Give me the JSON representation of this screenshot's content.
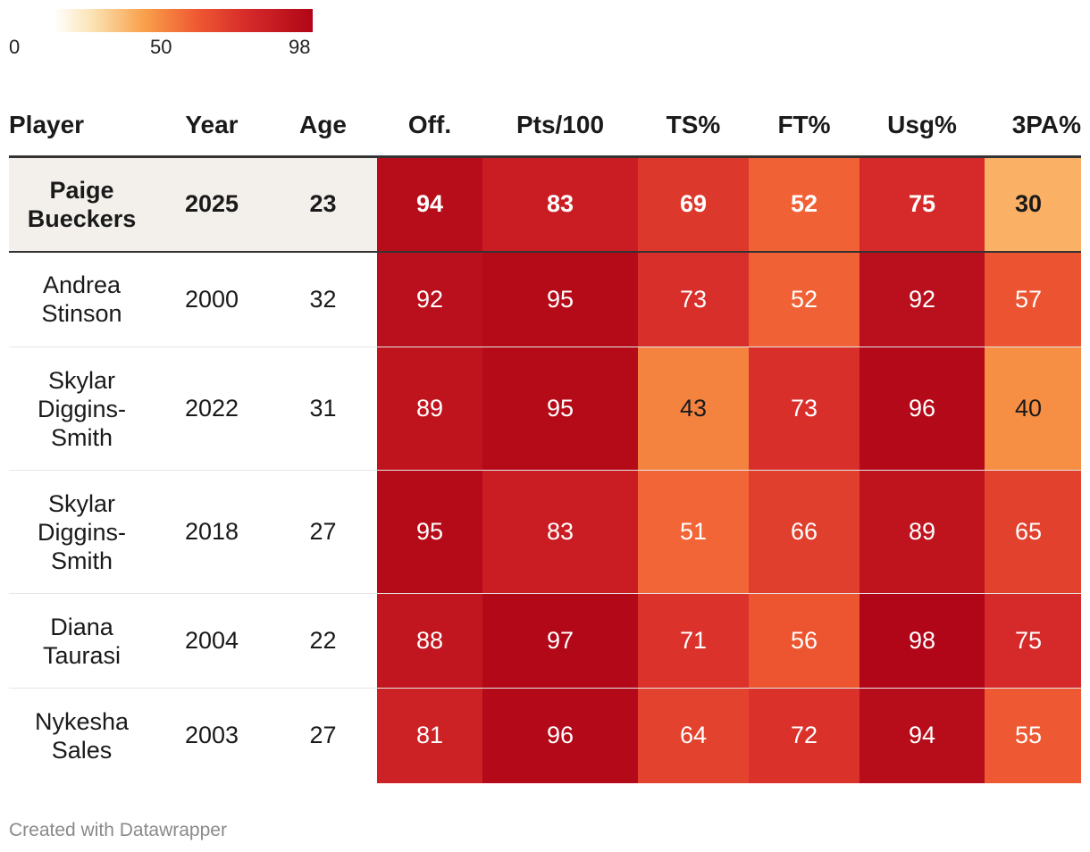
{
  "legend": {
    "min_label": "0",
    "mid_label": "50",
    "max_label": "98"
  },
  "chart_data": {
    "type": "table",
    "columns": [
      "Player",
      "Year",
      "Age",
      "Off.",
      "Pts/100",
      "TS%",
      "FT%",
      "Usg%",
      "3PA%"
    ],
    "scale": {
      "min": 0,
      "max": 98
    },
    "rows": [
      {
        "player": "Paige Bueckers",
        "year": "2025",
        "age": "23",
        "values": [
          94,
          83,
          69,
          52,
          75,
          30
        ],
        "highlight": true
      },
      {
        "player": "Andrea Stinson",
        "year": "2000",
        "age": "32",
        "values": [
          92,
          95,
          73,
          52,
          92,
          57
        ]
      },
      {
        "player": "Skylar Diggins-Smith",
        "year": "2022",
        "age": "31",
        "values": [
          89,
          95,
          43,
          73,
          96,
          40
        ]
      },
      {
        "player": "Skylar Diggins-Smith",
        "year": "2018",
        "age": "27",
        "values": [
          95,
          83,
          51,
          66,
          89,
          65
        ]
      },
      {
        "player": "Diana Taurasi",
        "year": "2004",
        "age": "22",
        "values": [
          88,
          97,
          71,
          56,
          98,
          75
        ]
      },
      {
        "player": "Nykesha Sales",
        "year": "2003",
        "age": "27",
        "values": [
          81,
          96,
          64,
          72,
          94,
          55
        ]
      }
    ]
  },
  "footer": {
    "text": "Created with Datawrapper"
  }
}
